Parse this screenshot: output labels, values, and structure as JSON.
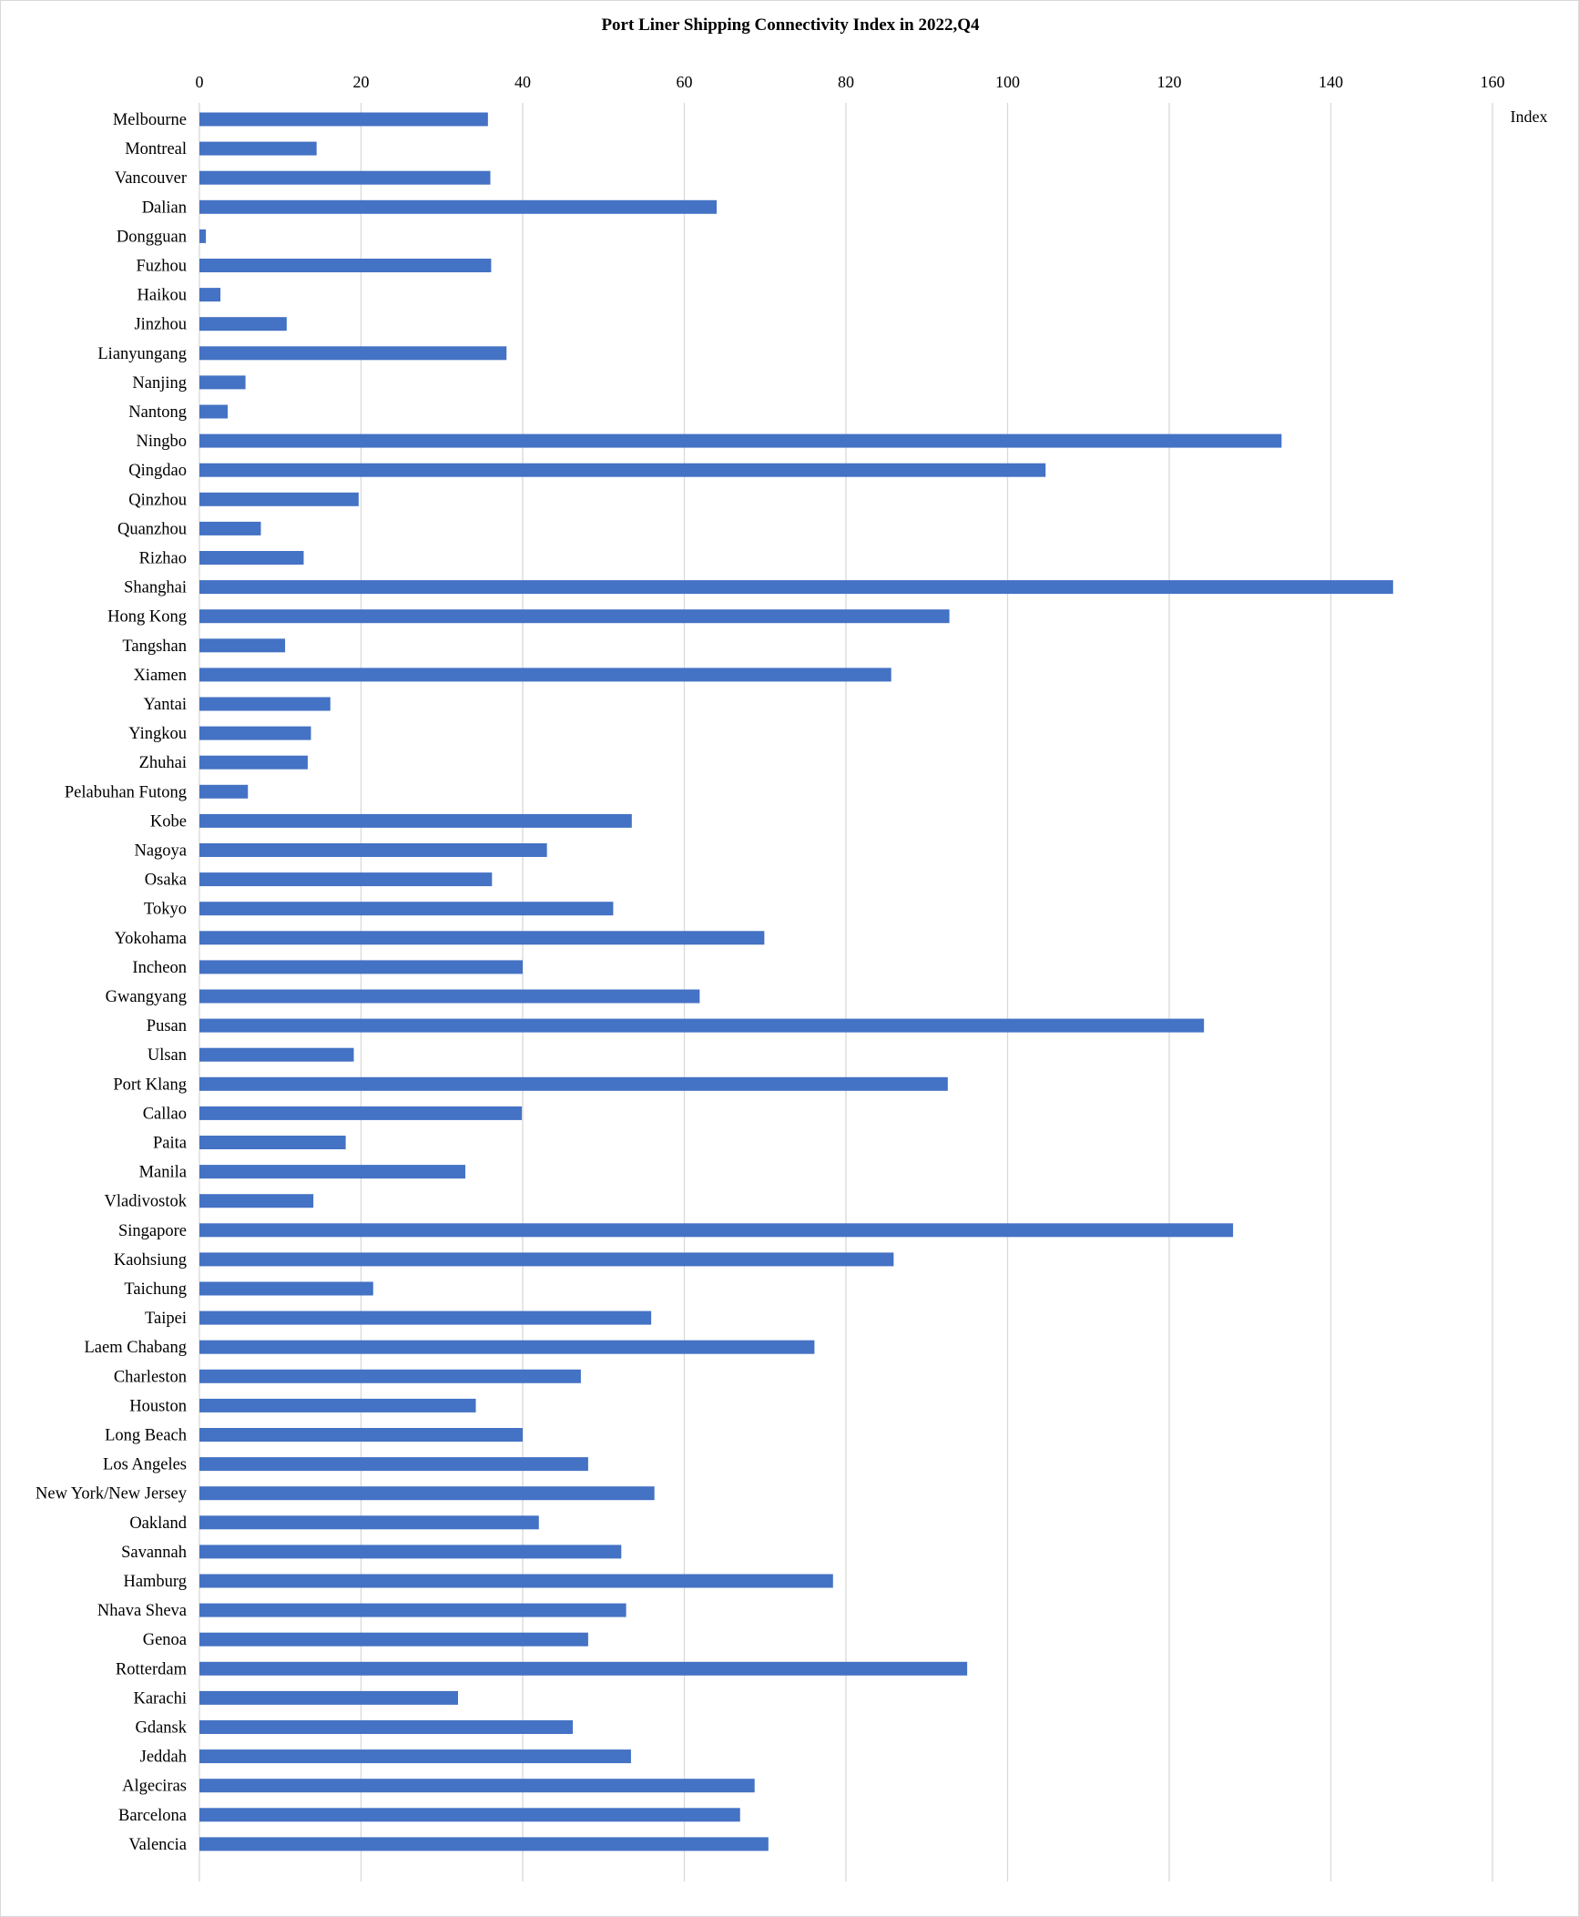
{
  "chart_data": {
    "type": "bar",
    "orientation": "horizontal",
    "title": "Port Liner Shipping Connectivity Index in 2022,Q4",
    "xlabel": "Index",
    "ylabel": "",
    "xlim": [
      0,
      160
    ],
    "x_ticks": [
      0,
      20,
      40,
      60,
      80,
      100,
      120,
      140,
      160
    ],
    "x_tick_labels": [
      "0",
      "20",
      "40",
      "60",
      "80",
      "100",
      "120",
      "140",
      "160"
    ],
    "x_axis_position": "top",
    "grid": "vertical",
    "legend": "none",
    "bar_color": "#4472C4",
    "categories": [
      "Melbourne",
      "Montreal",
      "Vancouver",
      "Dalian",
      "Dongguan",
      "Fuzhou",
      "Haikou",
      "Jinzhou",
      "Lianyungang",
      "Nanjing",
      "Nantong",
      "Ningbo",
      "Qingdao",
      "Qinzhou",
      "Quanzhou",
      "Rizhao",
      "Shanghai",
      "Hong Kong",
      "Tangshan",
      "Xiamen",
      "Yantai",
      "Yingkou",
      "Zhuhai",
      "Pelabuhan Futong",
      "Kobe",
      "Nagoya",
      "Osaka",
      "Tokyo",
      "Yokohama",
      "Incheon",
      "Gwangyang",
      "Pusan",
      "Ulsan",
      "Port Klang",
      "Callao",
      "Paita",
      "Manila",
      "Vladivostok",
      "Singapore",
      "Kaohsiung",
      "Taichung",
      "Taipei",
      "Laem Chabang",
      "Charleston",
      "Houston",
      "Long Beach",
      "Los Angeles",
      "New York/New Jersey",
      "Oakland",
      "Savannah",
      "Hamburg",
      "Nhava Sheva",
      "Genoa",
      "Rotterdam",
      "Karachi",
      "Gdansk",
      "Jeddah",
      "Algeciras",
      "Barcelona",
      "Valencia"
    ],
    "values": [
      35.7,
      14.5,
      36.0,
      64.0,
      0.8,
      36.1,
      2.6,
      10.8,
      38.0,
      5.7,
      3.5,
      133.9,
      104.7,
      19.7,
      7.6,
      12.9,
      147.7,
      92.8,
      10.6,
      85.6,
      16.2,
      13.8,
      13.4,
      6.0,
      53.5,
      43.0,
      36.2,
      51.2,
      69.9,
      40.0,
      61.9,
      124.3,
      19.1,
      92.6,
      39.9,
      18.1,
      32.9,
      14.1,
      127.9,
      85.9,
      21.5,
      55.9,
      76.1,
      47.2,
      34.2,
      40.0,
      48.1,
      56.3,
      42.0,
      52.2,
      78.4,
      52.8,
      48.1,
      95.0,
      32.0,
      46.2,
      53.4,
      68.7,
      66.9,
      70.4
    ]
  }
}
